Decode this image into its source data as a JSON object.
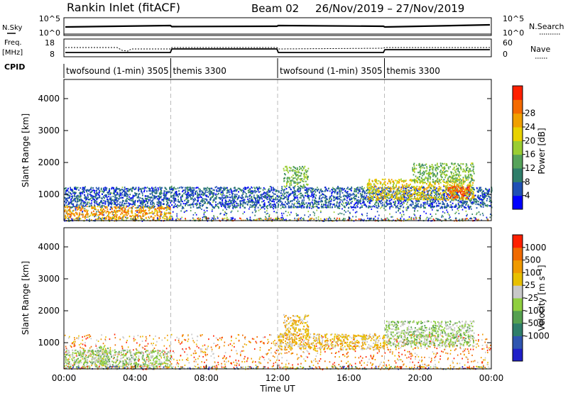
{
  "header": {
    "station": "Rankin Inlet (fitACF)",
    "beam": "Beam 02",
    "date_range": "26/Nov/2019 – 27/Nov/2019"
  },
  "top_panels": {
    "nsky_label": "N.Sky",
    "nsky_ticks": [
      "10^5",
      "10^0"
    ],
    "nsearch_label": "N.Search",
    "nsearch_ticks": [
      "10^5",
      "10^0"
    ],
    "freq_label": "Freq.",
    "freq_unit": "[MHz]",
    "freq_ticks": [
      "18",
      "8"
    ],
    "nave_label": "Nave",
    "nave_ticks": [
      "60",
      "0"
    ],
    "cpid_label": "CPID",
    "cpid_segments": [
      {
        "label": "twofsound (1-min) 3505",
        "start_hour": 0,
        "end_hour": 6
      },
      {
        "label": "themis 3300",
        "start_hour": 6,
        "end_hour": 12
      },
      {
        "label": "twofsound (1-min) 3505",
        "start_hour": 12,
        "end_hour": 18
      },
      {
        "label": "themis 3300",
        "start_hour": 18,
        "end_hour": 24
      }
    ]
  },
  "power_colorbar": {
    "label": "Power [dB]",
    "ticks": [
      "4",
      "8",
      "12",
      "16",
      "20",
      "24",
      "28"
    ],
    "colors": [
      "#0000ff",
      "#1f4fb4",
      "#2f7e6a",
      "#56a35a",
      "#9acd32",
      "#e8d200",
      "#f0a000",
      "#f46a00",
      "#ff2000"
    ]
  },
  "velocity_colorbar": {
    "label": "Velocity [m s⁻¹]",
    "ticks": [
      "1000",
      "500",
      "100",
      "25",
      "-25",
      "-100",
      "-500",
      "-1000"
    ],
    "colors": [
      "#2020c8",
      "#2f55b0",
      "#2f7e6a",
      "#55a050",
      "#8fcf3f",
      "#c8c8c8",
      "#e8c000",
      "#f09a00",
      "#f06a00",
      "#ff2000"
    ]
  },
  "chart_data": [
    {
      "type": "heatmap",
      "name": "power",
      "ylabel": "Slant Range [km]",
      "xlim": [
        0,
        24
      ],
      "ylim": [
        180,
        4600
      ],
      "yticks": [
        "1000",
        "2000",
        "3000",
        "4000"
      ],
      "xticks": [
        "00:00",
        "04:00",
        "08:00",
        "12:00",
        "16:00",
        "20:00",
        "00:00"
      ],
      "regions": [
        {
          "x": [
            0,
            24
          ],
          "y": [
            600,
            1250
          ],
          "value_db": 6
        },
        {
          "x": [
            0,
            6
          ],
          "y": [
            250,
            650
          ],
          "value_db": 24
        },
        {
          "x": [
            12.3,
            13.7
          ],
          "y": [
            1250,
            1900
          ],
          "value_db": 14
        },
        {
          "x": [
            17,
            23
          ],
          "y": [
            850,
            1500
          ],
          "value_db": 20
        },
        {
          "x": [
            21.5,
            22.8
          ],
          "y": [
            900,
            1300
          ],
          "value_db": 28
        },
        {
          "x": [
            19.5,
            23
          ],
          "y": [
            1400,
            2000
          ],
          "value_db": 14
        }
      ]
    },
    {
      "type": "heatmap",
      "name": "velocity",
      "ylabel": "Slant Range [km]",
      "xlabel": "Time UT",
      "xlim": [
        0,
        24
      ],
      "ylim": [
        180,
        4600
      ],
      "yticks": [
        "1000",
        "2000",
        "3000",
        "4000"
      ],
      "xticks": [
        "00:00",
        "04:00",
        "08:00",
        "12:00",
        "16:00",
        "20:00",
        "00:00"
      ],
      "regions": [
        {
          "x": [
            0,
            6
          ],
          "y": [
            250,
            800
          ],
          "value_ms": 50
        },
        {
          "x": [
            1.5,
            2.5
          ],
          "y": [
            300,
            900
          ],
          "value_ms": 0
        },
        {
          "x": [
            12.3,
            13.7
          ],
          "y": [
            1250,
            1900
          ],
          "value_ms": -300
        },
        {
          "x": [
            12,
            18
          ],
          "y": [
            800,
            1300
          ],
          "value_ms": -300
        },
        {
          "x": [
            18,
            23
          ],
          "y": [
            900,
            1700
          ],
          "value_ms": 50
        }
      ]
    }
  ]
}
